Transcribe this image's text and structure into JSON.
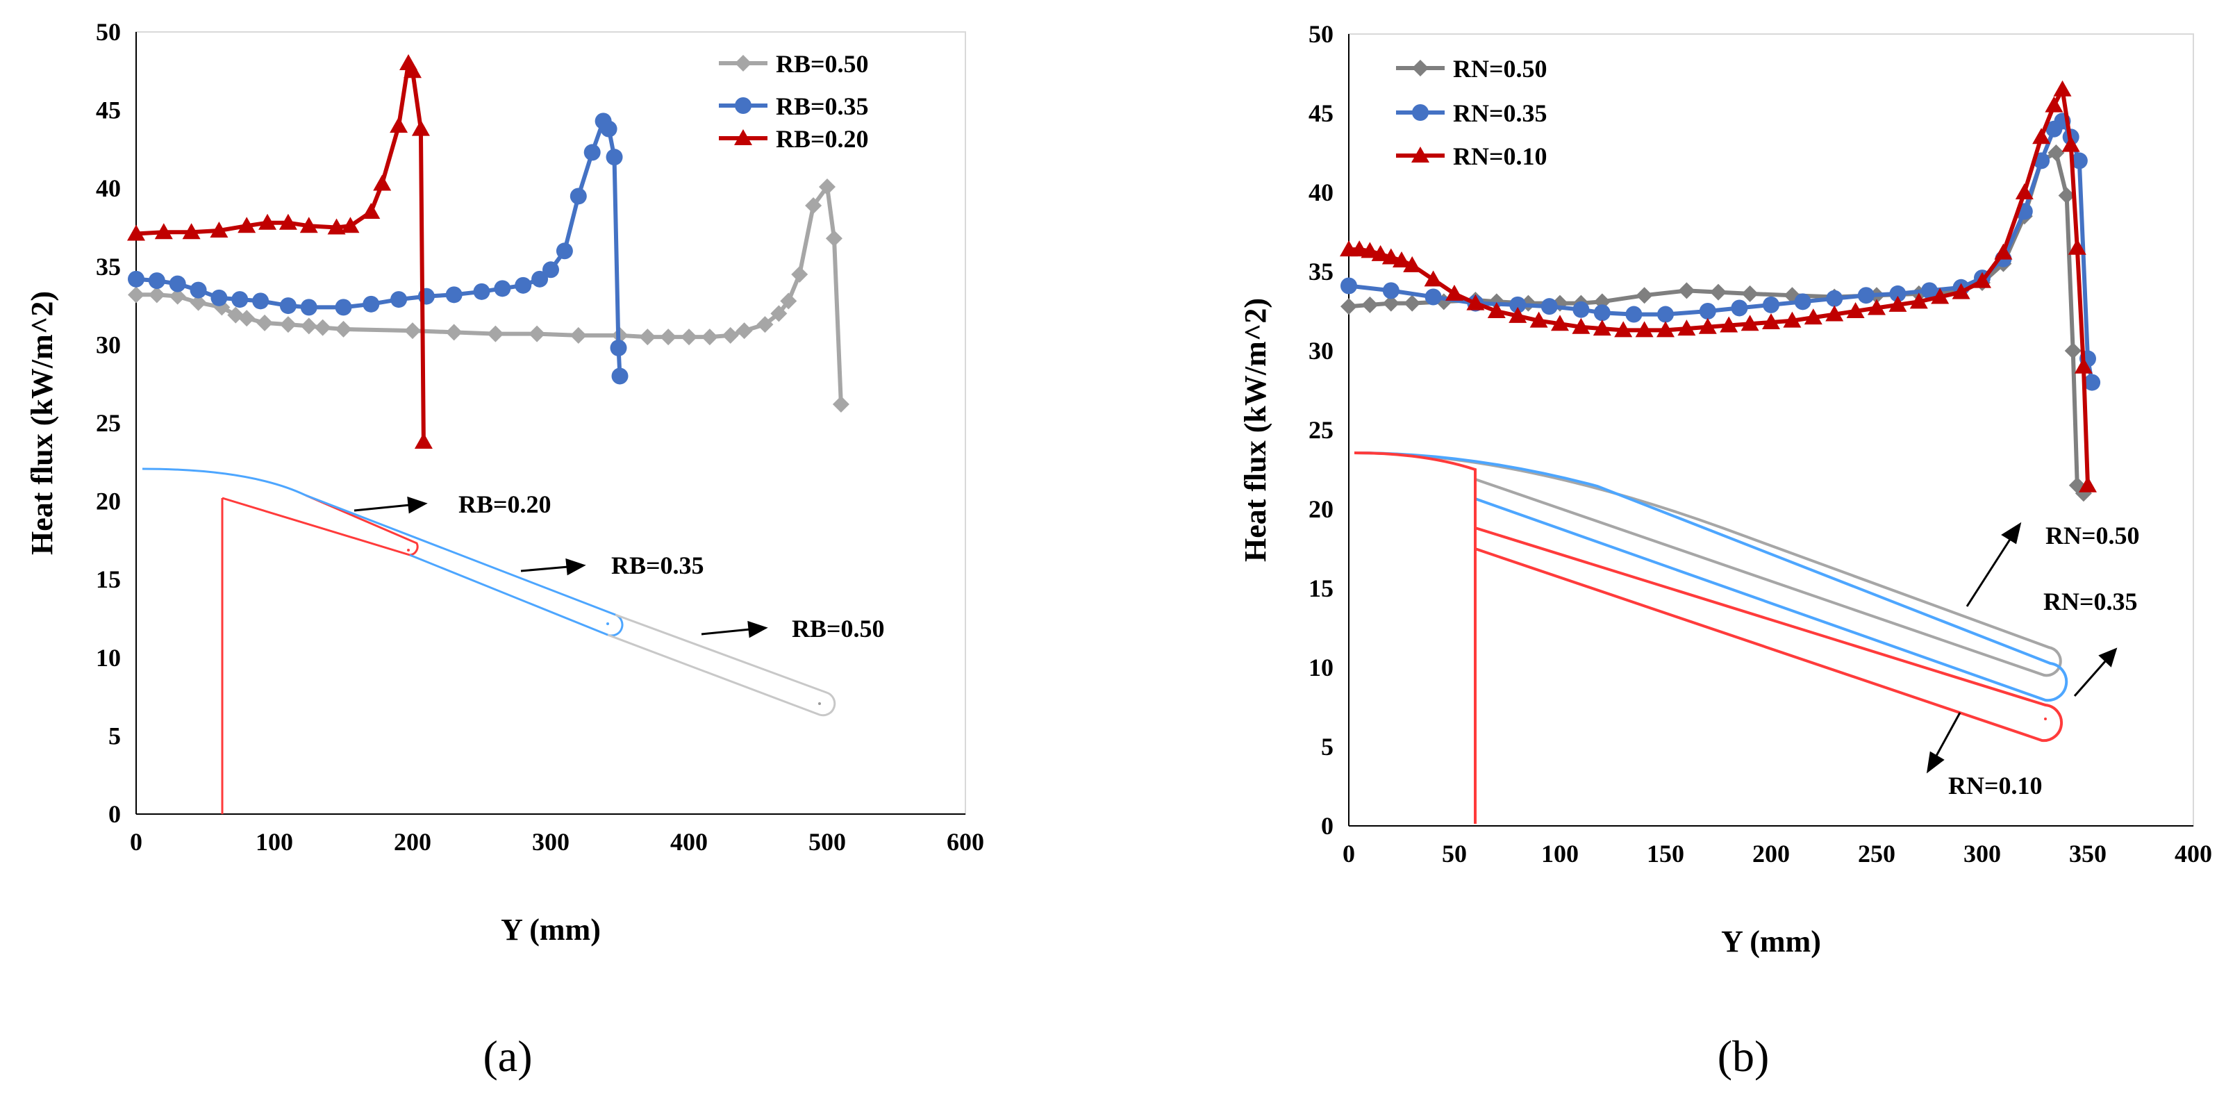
{
  "chart_data": [
    {
      "type": "line",
      "panel_label": "(a)",
      "xlabel": "Y (mm)",
      "ylabel": "Heat flux (kW/m^2)",
      "xlim": [
        0,
        600
      ],
      "ylim": [
        0,
        50
      ],
      "xticks": [
        "0",
        "100",
        "200",
        "300",
        "400",
        "500",
        "600"
      ],
      "yticks": [
        "0",
        "5",
        "10",
        "15",
        "20",
        "25",
        "30",
        "35",
        "40",
        "45",
        "50"
      ],
      "legend_position": "top-right",
      "series": [
        {
          "name": "RB=0.50",
          "color": "#A6A6A6",
          "marker": "diamond",
          "x": [
            0,
            15,
            30,
            45,
            62,
            72,
            80,
            93,
            110,
            125,
            135,
            150,
            200,
            230,
            260,
            290,
            320,
            350,
            370,
            385,
            400,
            415,
            430,
            440,
            455,
            465,
            472,
            480,
            490,
            500,
            505,
            510
          ],
          "y": [
            33.2,
            33.2,
            33.1,
            32.7,
            32.4,
            31.9,
            31.7,
            31.4,
            31.3,
            31.2,
            31.1,
            31.0,
            30.9,
            30.8,
            30.7,
            30.7,
            30.6,
            30.6,
            30.5,
            30.5,
            30.5,
            30.5,
            30.6,
            30.9,
            31.3,
            32.0,
            32.8,
            34.5,
            38.9,
            40.1,
            36.8,
            26.2
          ]
        },
        {
          "name": "RB=0.35",
          "color": "#4472C4",
          "marker": "circle",
          "x": [
            0,
            15,
            30,
            45,
            60,
            75,
            90,
            110,
            125,
            150,
            170,
            190,
            210,
            230,
            250,
            265,
            280,
            292,
            300,
            310,
            320,
            330,
            338,
            342,
            346,
            349,
            350
          ],
          "y": [
            34.2,
            34.1,
            33.9,
            33.5,
            33.0,
            32.9,
            32.8,
            32.5,
            32.4,
            32.4,
            32.6,
            32.9,
            33.1,
            33.2,
            33.4,
            33.6,
            33.8,
            34.2,
            34.8,
            36.0,
            39.5,
            42.3,
            44.3,
            43.8,
            42.0,
            29.8,
            28.0
          ]
        },
        {
          "name": "RB=0.20",
          "color": "#C00000",
          "marker": "triangle",
          "x": [
            0,
            20,
            40,
            60,
            80,
            95,
            110,
            125,
            145,
            155,
            170,
            178,
            190,
            197,
            200,
            206,
            208
          ],
          "y": [
            37.1,
            37.2,
            37.2,
            37.3,
            37.6,
            37.8,
            37.8,
            37.6,
            37.5,
            37.6,
            38.5,
            40.3,
            44.0,
            48.0,
            47.5,
            43.8,
            23.8
          ]
        }
      ],
      "annotations": [
        "RB=0.20",
        "RB=0.35",
        "RB=0.50"
      ]
    },
    {
      "type": "line",
      "panel_label": "(b)",
      "xlabel": "Y (mm)",
      "ylabel": "Heat flux (kW/m^2)",
      "xlim": [
        0,
        400
      ],
      "ylim": [
        0,
        50
      ],
      "xticks": [
        "0",
        "50",
        "100",
        "150",
        "200",
        "250",
        "300",
        "350",
        "400"
      ],
      "yticks": [
        "0",
        "5",
        "10",
        "15",
        "20",
        "25",
        "30",
        "35",
        "40",
        "45",
        "50"
      ],
      "legend_position": "top-left",
      "series": [
        {
          "name": "RN=0.50",
          "color": "#7F7F7F",
          "marker": "diamond",
          "x": [
            0,
            10,
            20,
            30,
            45,
            60,
            70,
            85,
            100,
            110,
            120,
            140,
            160,
            175,
            190,
            210,
            230,
            250,
            270,
            290,
            300,
            310,
            320,
            328,
            335,
            340,
            343,
            345,
            348
          ],
          "y": [
            32.8,
            32.9,
            33.0,
            33.0,
            33.1,
            33.2,
            33.1,
            33.0,
            33.0,
            33.0,
            33.1,
            33.5,
            33.8,
            33.7,
            33.6,
            33.5,
            33.4,
            33.5,
            33.6,
            33.8,
            34.3,
            35.5,
            38.5,
            42.0,
            42.5,
            39.8,
            30.0,
            21.5,
            21.0
          ]
        },
        {
          "name": "RN=0.35",
          "color": "#4472C4",
          "marker": "circle",
          "x": [
            0,
            20,
            40,
            60,
            80,
            95,
            110,
            120,
            135,
            150,
            170,
            185,
            200,
            215,
            230,
            245,
            260,
            275,
            290,
            300,
            310,
            320,
            328,
            334,
            338,
            342,
            346,
            350,
            352
          ],
          "y": [
            34.1,
            33.8,
            33.4,
            33.0,
            32.9,
            32.8,
            32.6,
            32.4,
            32.3,
            32.3,
            32.5,
            32.7,
            32.9,
            33.1,
            33.3,
            33.5,
            33.6,
            33.8,
            34.0,
            34.6,
            35.8,
            38.8,
            42.0,
            44.0,
            44.5,
            43.5,
            42.0,
            29.5,
            28.0
          ]
        },
        {
          "name": "RN=0.10",
          "color": "#C00000",
          "marker": "triangle",
          "x": [
            0,
            5,
            10,
            15,
            20,
            25,
            30,
            40,
            50,
            60,
            70,
            80,
            90,
            100,
            110,
            120,
            130,
            140,
            150,
            160,
            170,
            180,
            190,
            200,
            210,
            220,
            230,
            240,
            250,
            260,
            270,
            280,
            290,
            300,
            310,
            320,
            328,
            334,
            338,
            342,
            345,
            348,
            350
          ],
          "y": [
            36.4,
            36.4,
            36.3,
            36.1,
            35.9,
            35.7,
            35.4,
            34.5,
            33.6,
            33.0,
            32.5,
            32.2,
            31.9,
            31.7,
            31.5,
            31.4,
            31.3,
            31.3,
            31.3,
            31.4,
            31.5,
            31.6,
            31.7,
            31.8,
            31.9,
            32.1,
            32.3,
            32.5,
            32.7,
            32.9,
            33.1,
            33.4,
            33.7,
            34.4,
            36.2,
            40.0,
            43.5,
            45.5,
            46.5,
            43.0,
            36.5,
            29.0,
            21.5
          ]
        }
      ],
      "annotations": [
        "RN=0.50",
        "RN=0.35",
        "RN=0.10"
      ]
    }
  ]
}
